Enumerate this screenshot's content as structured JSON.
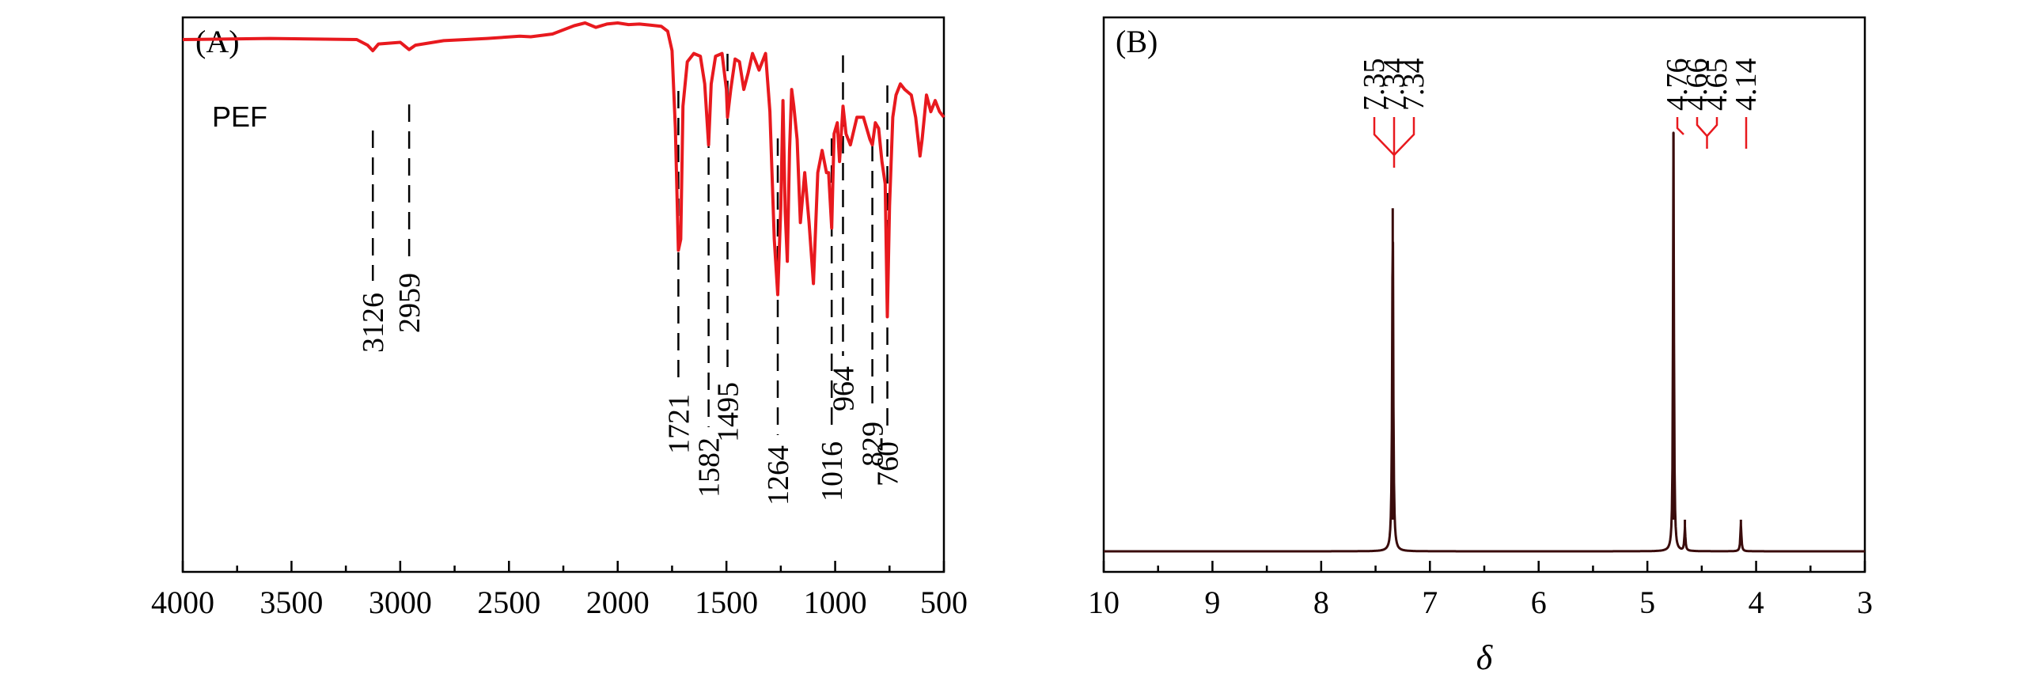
{
  "chart_data": [
    {
      "type": "line",
      "panel_label": "(A)",
      "series_label": "PEF",
      "xlim": [
        4000,
        500
      ],
      "x_ticks": [
        4000,
        3500,
        3000,
        2500,
        2000,
        1500,
        1000,
        500
      ],
      "peaks": [
        3126,
        2959,
        1721,
        1582,
        1495,
        1264,
        1016,
        964,
        829,
        760
      ],
      "series": [
        {
          "name": "PEF",
          "x": [
            4000,
            3600,
            3200,
            3150,
            3126,
            3100,
            3000,
            2959,
            2930,
            2800,
            2600,
            2450,
            2400,
            2300,
            2200,
            2150,
            2100,
            2050,
            2000,
            1950,
            1900,
            1850,
            1800,
            1770,
            1750,
            1735,
            1721,
            1710,
            1700,
            1680,
            1650,
            1620,
            1600,
            1582,
            1570,
            1550,
            1520,
            1500,
            1495,
            1480,
            1460,
            1440,
            1420,
            1400,
            1380,
            1350,
            1320,
            1300,
            1280,
            1264,
            1250,
            1240,
            1230,
            1220,
            1210,
            1200,
            1190,
            1175,
            1160,
            1140,
            1120,
            1100,
            1080,
            1060,
            1040,
            1030,
            1016,
            1005,
            990,
            980,
            964,
            950,
            930,
            900,
            870,
            840,
            829,
            815,
            800,
            785,
            770,
            760,
            750,
            735,
            720,
            700,
            680,
            650,
            630,
            610,
            600,
            580,
            560,
            540,
            520,
            500
          ],
          "y": [
            0.96,
            0.962,
            0.96,
            0.95,
            0.94,
            0.952,
            0.955,
            0.942,
            0.95,
            0.958,
            0.962,
            0.966,
            0.965,
            0.97,
            0.985,
            0.99,
            0.982,
            0.988,
            0.99,
            0.987,
            0.988,
            0.986,
            0.984,
            0.975,
            0.94,
            0.8,
            0.58,
            0.6,
            0.84,
            0.92,
            0.935,
            0.93,
            0.88,
            0.77,
            0.88,
            0.93,
            0.935,
            0.87,
            0.82,
            0.87,
            0.925,
            0.92,
            0.87,
            0.9,
            0.935,
            0.905,
            0.935,
            0.83,
            0.6,
            0.5,
            0.66,
            0.85,
            0.65,
            0.56,
            0.76,
            0.87,
            0.84,
            0.78,
            0.63,
            0.72,
            0.63,
            0.52,
            0.72,
            0.76,
            0.72,
            0.72,
            0.62,
            0.79,
            0.81,
            0.74,
            0.84,
            0.79,
            0.77,
            0.82,
            0.82,
            0.78,
            0.77,
            0.81,
            0.8,
            0.74,
            0.7,
            0.46,
            0.66,
            0.82,
            0.86,
            0.88,
            0.87,
            0.86,
            0.82,
            0.75,
            0.78,
            0.86,
            0.83,
            0.85,
            0.83,
            0.82
          ]
        }
      ]
    },
    {
      "type": "line",
      "panel_label": "(B)",
      "xlabel": "δ",
      "xlim": [
        10,
        3
      ],
      "x_ticks": [
        10,
        9,
        8,
        7,
        6,
        5,
        4,
        3
      ],
      "peak_labels": [
        "7.35",
        "7.34",
        "7.34",
        "4.76",
        "4.66",
        "4.65",
        "4.14"
      ],
      "peak_positions": [
        7.35,
        7.34,
        7.34,
        4.76,
        4.66,
        4.65,
        4.14
      ],
      "peak_heights": [
        0.82,
        0.82,
        0.82,
        1.0,
        0.055,
        0.055,
        0.065
      ],
      "colors": {
        "trace": "#3a0c0c",
        "markers": "#e8191e"
      }
    }
  ]
}
